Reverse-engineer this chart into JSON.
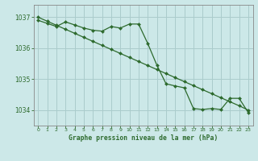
{
  "title": "Graphe pression niveau de la mer (hPa)",
  "bg_color": "#cce8e8",
  "grid_color": "#aacccc",
  "line_color": "#2d6a2d",
  "marker_color": "#2d6a2d",
  "x_labels": [
    "0",
    "1",
    "2",
    "3",
    "4",
    "5",
    "6",
    "7",
    "8",
    "9",
    "10",
    "11",
    "12",
    "13",
    "14",
    "15",
    "16",
    "17",
    "18",
    "19",
    "20",
    "21",
    "22",
    "23"
  ],
  "ylim": [
    1033.5,
    1037.4
  ],
  "yticks": [
    1034,
    1035,
    1036,
    1037
  ],
  "series_straight": [
    1037.0,
    1036.87,
    1036.74,
    1036.61,
    1036.48,
    1036.35,
    1036.22,
    1036.09,
    1035.96,
    1035.83,
    1035.7,
    1035.57,
    1035.44,
    1035.31,
    1035.18,
    1035.05,
    1034.92,
    1034.79,
    1034.66,
    1034.53,
    1034.4,
    1034.27,
    1034.14,
    1034.0
  ],
  "series_jagged": [
    1036.9,
    1036.8,
    1036.7,
    1036.85,
    1036.75,
    1036.65,
    1036.58,
    1036.55,
    1036.7,
    1036.65,
    1036.78,
    1036.78,
    1036.15,
    1035.45,
    1034.85,
    1034.78,
    1034.72,
    1034.05,
    1034.02,
    1034.05,
    1034.02,
    1034.38,
    1034.38,
    1033.92
  ]
}
